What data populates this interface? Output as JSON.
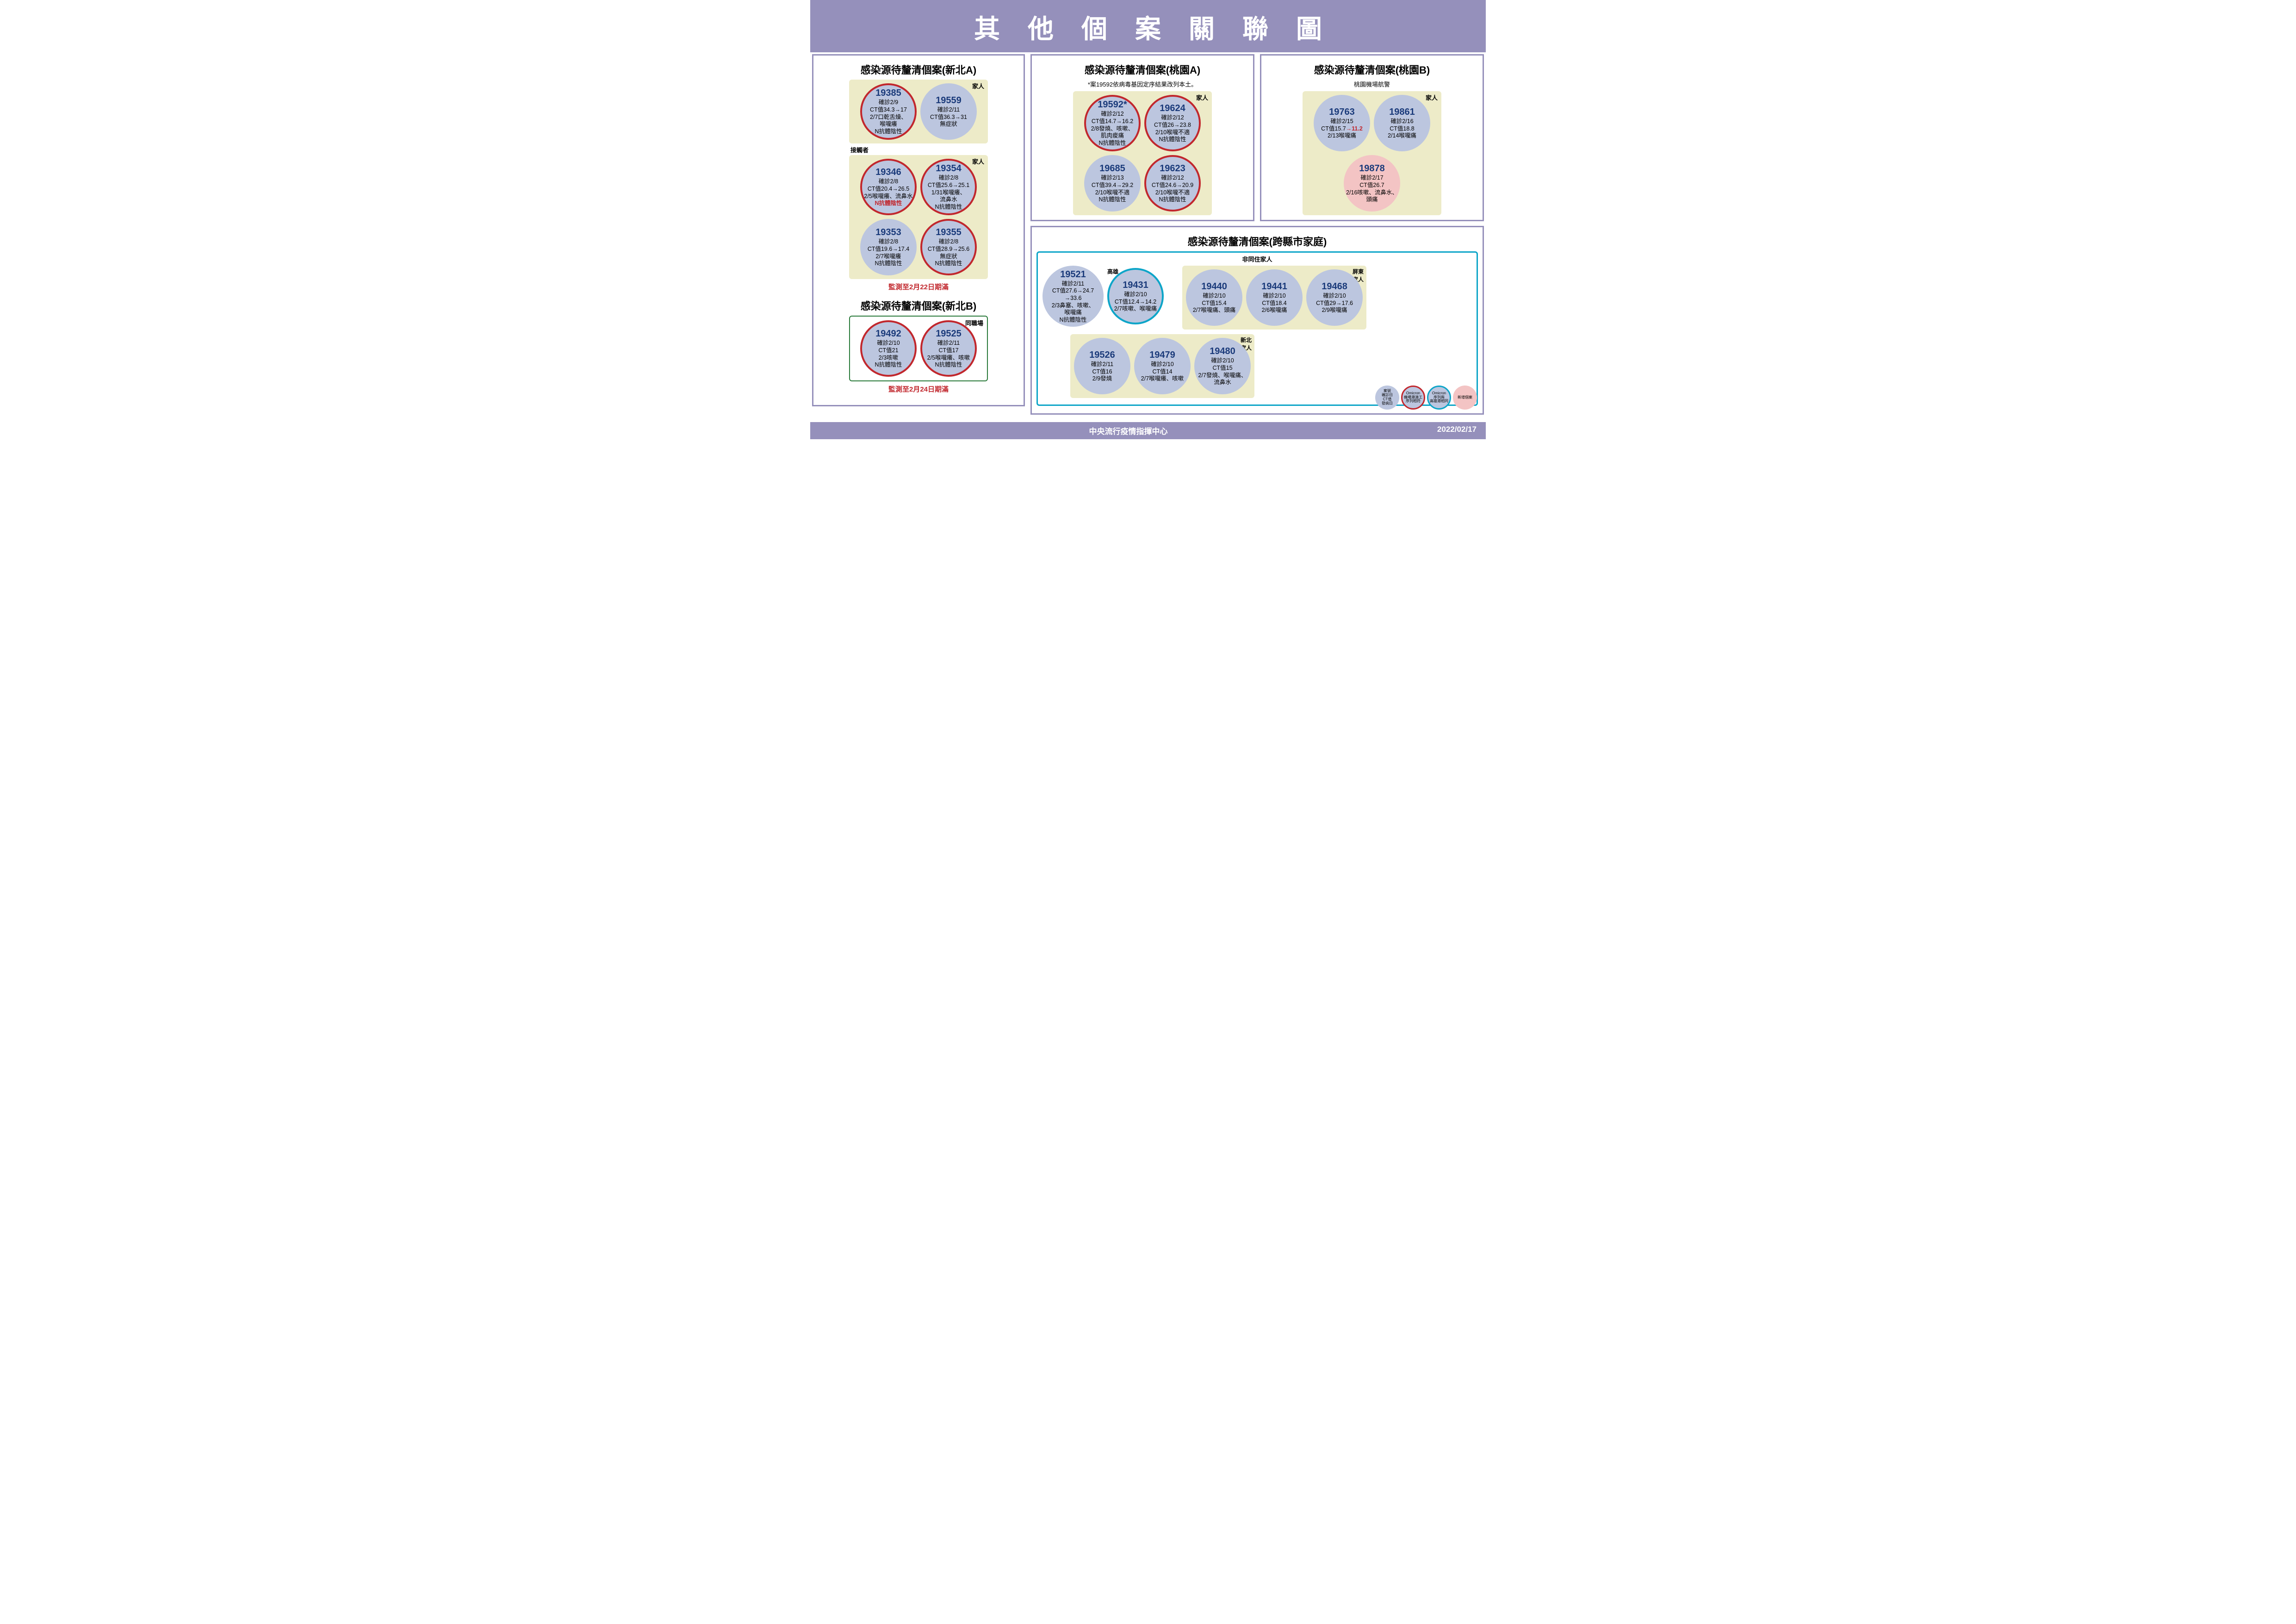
{
  "title": "其他個案關聯圖",
  "footer": {
    "center": "中央流行疫情指揮中心",
    "date": "2022/02/17"
  },
  "colors": {
    "band": "#9590bb",
    "node_fill": "#bcc6df",
    "node_pink": "#f3c4c4",
    "ring_red": "#c1272d",
    "ring_cyan": "#0da5c8",
    "group_bg": "#edebc8",
    "green": "#2a7a3a",
    "red_text": "#c1272d",
    "case_no": "#1a3a7a"
  },
  "legend": [
    {
      "label": "案號\n確診日\nCT值\n發病日",
      "bg": "#bcc6df",
      "ring": null
    },
    {
      "label": "Omicron\n機場港澳工\n序列相符",
      "bg": "#bcc6df",
      "ring": "#c1272d"
    },
    {
      "label": "Omicron\n序列與\n高雄港相同",
      "bg": "#bcc6df",
      "ring": "#0da5c8"
    },
    {
      "label": "新增個案",
      "bg": "#f3c4c4",
      "ring": null
    }
  ],
  "clusters": {
    "xinbeiA": {
      "title": "感染源待釐清個案(新北A)",
      "group1_tag": "家人",
      "group2_tag": "家人",
      "connector": "接觸者",
      "monitor": "監測至2月22日期滿",
      "nodes_g1": [
        {
          "no": "19385",
          "ring": "red",
          "lines": [
            "確診2/9",
            "CT值34.3→17",
            "2/7口乾舌燥、",
            "喉嚨癢",
            "N抗體陰性"
          ]
        },
        {
          "no": "19559",
          "ring": null,
          "lines": [
            "確診2/11",
            "CT值36.3→31",
            "無症狀"
          ]
        }
      ],
      "nodes_g2": [
        {
          "no": "19346",
          "ring": "red",
          "lines": [
            "確診2/8",
            "CT值20.4→26.5",
            "2/5喉嚨癢、流鼻水"
          ],
          "red_line": "N抗體陰性"
        },
        {
          "no": "19354",
          "ring": "red",
          "lines": [
            "確診2/8",
            "CT值25.6→25.1",
            "1/31喉嚨癢、",
            "流鼻水",
            "N抗體陰性"
          ]
        },
        {
          "no": "19353",
          "ring": null,
          "lines": [
            "確診2/8",
            "CT值19.6→17.4",
            "2/7喉嚨癢",
            "N抗體陰性"
          ]
        },
        {
          "no": "19355",
          "ring": "red",
          "lines": [
            "確診2/8",
            "CT值28.9→25.6",
            "無症狀",
            "N抗體陰性"
          ]
        }
      ]
    },
    "xinbeiB": {
      "title": "感染源待釐清個案(新北B)",
      "group_tag": "同職場",
      "monitor": "監測至2月24日期滿",
      "nodes": [
        {
          "no": "19492",
          "ring": "red",
          "lines": [
            "確診2/10",
            "CT值21",
            "2/3咳嗽",
            "N抗體陰性"
          ]
        },
        {
          "no": "19525",
          "ring": "red",
          "lines": [
            "確診2/11",
            "CT值17",
            "2/5喉嚨癢、咳嗽",
            "N抗體陰性"
          ]
        }
      ]
    },
    "taoyuanA": {
      "title": "感染源待釐清個案(桃園A)",
      "sub": "*案19592依病毒基因定序結果改列本土。",
      "group_tag": "家人",
      "nodes": [
        {
          "no": "19592*",
          "ring": "red",
          "lines": [
            "確診2/12",
            "CT值14.7→16.2",
            "2/8發燒、咳嗽、",
            "肌肉痠痛",
            "N抗體陰性"
          ]
        },
        {
          "no": "19624",
          "ring": "red",
          "lines": [
            "確診2/12",
            "CT值26→23.8",
            "2/10喉嚨不適",
            "N抗體陰性"
          ]
        },
        {
          "no": "19685",
          "ring": null,
          "lines": [
            "確診2/13",
            "CT值39.4→29.2",
            "2/10喉嚨不適",
            "N抗體陰性"
          ]
        },
        {
          "no": "19623",
          "ring": "red",
          "lines": [
            "確診2/12",
            "CT值24.6→20.9",
            "2/10喉嚨不適",
            "N抗體陰性"
          ]
        }
      ]
    },
    "taoyuanB": {
      "title": "感染源待釐清個案(桃園B)",
      "sub": "桃園機場航警",
      "group_tag": "家人",
      "nodes": [
        {
          "no": "19763",
          "ring": null,
          "lines": [
            "確診2/15",
            "CT值15.7"
          ],
          "red_inline": "→11.2",
          "lines2": [
            "2/13喉嚨痛"
          ]
        },
        {
          "no": "19861",
          "ring": null,
          "lines": [
            "確診2/16",
            "CT值18.8",
            "2/14喉嚨痛"
          ]
        },
        {
          "no": "19878",
          "ring": null,
          "pink": true,
          "lines": [
            "確診2/17",
            "CT值26.7",
            "2/16咳嗽、流鼻水、",
            "頭痛"
          ]
        }
      ]
    },
    "cross": {
      "title": "感染源待釐清個案(跨縣市家庭)",
      "outer_tag": "非同住家人",
      "kaohsiung_tag": "高雄",
      "pingtung_tag": "屏東\n家人",
      "xinbei_tag": "新北\n家人",
      "top_loose": [
        {
          "no": "19521",
          "ring": null,
          "big": true,
          "lines": [
            "確診2/11",
            "CT值27.6→24.7",
            "→33.6",
            "2/3鼻塞、咳嗽、",
            "喉嚨痛",
            "N抗體陰性"
          ]
        },
        {
          "no": "19431",
          "ring": "cyan",
          "lines": [
            "確診2/10",
            "CT值12.4→14.2",
            "2/7咳嗽、喉嚨痛"
          ]
        }
      ],
      "pingtung": [
        {
          "no": "19440",
          "ring": null,
          "lines": [
            "確診2/10",
            "CT值15.4",
            "2/7喉嚨痛、頭痛"
          ]
        },
        {
          "no": "19441",
          "ring": null,
          "lines": [
            "確診2/10",
            "CT值18.4",
            "2/6喉嚨痛"
          ]
        },
        {
          "no": "19468",
          "ring": null,
          "lines": [
            "確診2/10",
            "CT值29→17.6",
            "2/9喉嚨痛"
          ]
        }
      ],
      "xinbei": [
        {
          "no": "19526",
          "ring": null,
          "lines": [
            "確診2/11",
            "CT值16",
            "2/9發燒"
          ]
        },
        {
          "no": "19479",
          "ring": null,
          "lines": [
            "確診2/10",
            "CT值14",
            "2/7喉嚨癢、咳嗽"
          ]
        },
        {
          "no": "19480",
          "ring": null,
          "lines": [
            "確診2/10",
            "CT值15",
            "2/7發燒、喉嚨痛、",
            "流鼻水"
          ]
        }
      ]
    }
  }
}
